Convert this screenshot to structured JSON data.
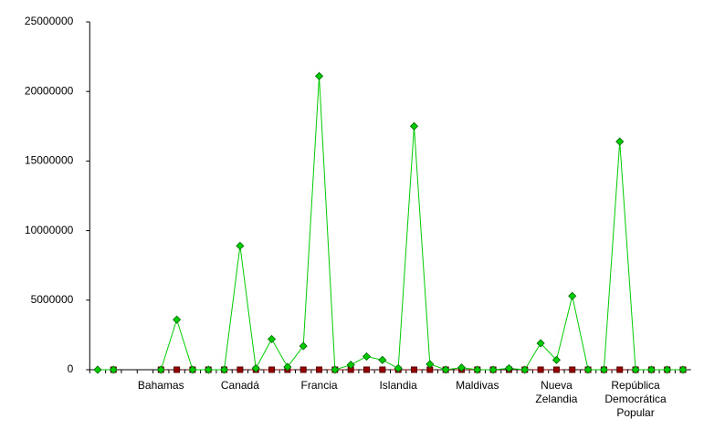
{
  "chart_data": {
    "type": "line",
    "categories": [
      null,
      null,
      null,
      null,
      "Bahamas",
      null,
      null,
      null,
      null,
      "Canadá",
      null,
      null,
      null,
      null,
      "Francia",
      null,
      null,
      null,
      null,
      "Islandia",
      null,
      null,
      null,
      null,
      "Maldivas",
      null,
      null,
      null,
      null,
      "Nueva Zelandia",
      null,
      null,
      null,
      null,
      "República Democrática Popular",
      null,
      null,
      null
    ],
    "series": [
      {
        "color": "#00cc00",
        "marker": "diamond",
        "values": [
          0,
          0,
          null,
          null,
          0,
          3600000,
          0,
          0,
          0,
          8900000,
          100000,
          2200000,
          200000,
          1700000,
          21100000,
          0,
          350000,
          950000,
          700000,
          100000,
          17500000,
          400000,
          0,
          150000,
          0,
          0,
          100000,
          0,
          1900000,
          700000,
          5300000,
          0,
          0,
          16400000,
          0,
          0,
          0,
          0
        ]
      },
      {
        "color": "#990000",
        "marker": "square",
        "values": [
          null,
          0,
          null,
          null,
          0,
          0,
          0,
          0,
          0,
          0,
          0,
          0,
          0,
          0,
          0,
          0,
          0,
          0,
          0,
          0,
          0,
          0,
          0,
          0,
          0,
          0,
          0,
          0,
          0,
          0,
          0,
          0,
          0,
          0,
          0,
          0,
          0,
          0
        ]
      }
    ],
    "ylim": [
      0,
      25000000
    ],
    "yticks": [
      0,
      5000000,
      10000000,
      15000000,
      20000000,
      25000000
    ]
  }
}
